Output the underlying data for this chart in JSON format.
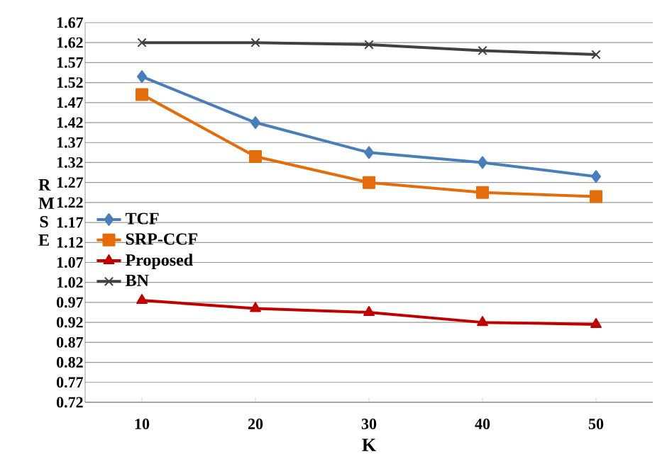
{
  "chart_data": {
    "type": "line",
    "xlabel": "K",
    "ylabel": "R M S E",
    "categories": [
      "10",
      "20",
      "30",
      "40",
      "50"
    ],
    "ylim": [
      0.72,
      1.67
    ],
    "yticks": [
      0.72,
      0.77,
      0.82,
      0.87,
      0.92,
      0.97,
      1.02,
      1.07,
      1.12,
      1.17,
      1.22,
      1.27,
      1.32,
      1.37,
      1.42,
      1.47,
      1.52,
      1.57,
      1.62,
      1.67
    ],
    "grid": "y",
    "legend": "left",
    "series": [
      {
        "name": "TCF",
        "color": "#4a7ebb",
        "marker": "diamond",
        "values": [
          1.535,
          1.42,
          1.345,
          1.32,
          1.285
        ]
      },
      {
        "name": "SRP-CCF",
        "color": "#e46c0a",
        "marker": "square",
        "values": [
          1.49,
          1.335,
          1.27,
          1.245,
          1.235
        ]
      },
      {
        "name": "Proposed",
        "color": "#c00000",
        "marker": "triangle",
        "values": [
          0.975,
          0.955,
          0.945,
          0.92,
          0.915
        ]
      },
      {
        "name": "BN",
        "color": "#404040",
        "marker": "cross",
        "values": [
          1.62,
          1.62,
          1.615,
          1.6,
          1.59
        ]
      }
    ]
  }
}
